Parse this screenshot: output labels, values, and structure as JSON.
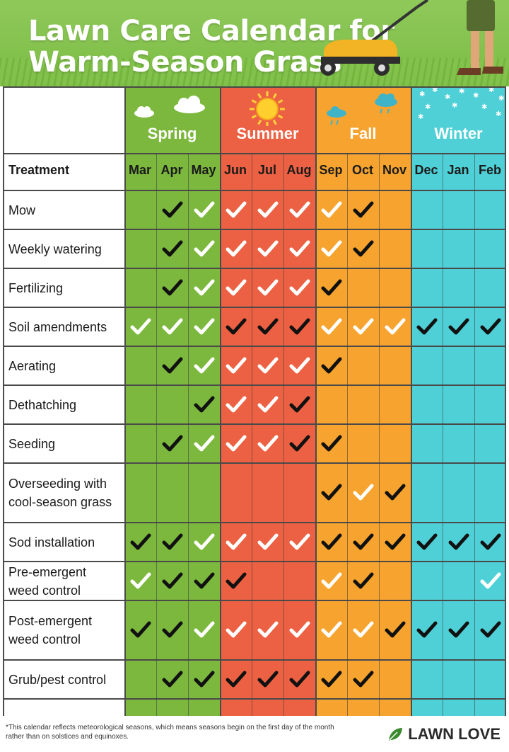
{
  "title": {
    "line1": "Lawn Care Calendar for",
    "line2": "Warm-Season Grass"
  },
  "seasons": [
    {
      "name": "Spring",
      "color": "#7cb83e",
      "icon": "cloud-icon"
    },
    {
      "name": "Summer",
      "color": "#ec6143",
      "icon": "sun-icon"
    },
    {
      "name": "Fall",
      "color": "#f6a42f",
      "icon": "rain-cloud-icon"
    },
    {
      "name": "Winter",
      "color": "#4fd0d6",
      "icon": "snowflake-icon"
    }
  ],
  "table": {
    "header_label": "Treatment",
    "months": [
      "Mar",
      "Apr",
      "May",
      "Jun",
      "Jul",
      "Aug",
      "Sep",
      "Oct",
      "Nov",
      "Dec",
      "Jan",
      "Feb"
    ],
    "legend_note": "Check marks: k = black check, w = white check, . = none",
    "rows": [
      {
        "label": [
          "Mow"
        ],
        "marks": ". k w w w w w k . . . ."
      },
      {
        "label": [
          "Weekly watering"
        ],
        "marks": ". k w w w w w k . . . ."
      },
      {
        "label": [
          "Fertilizing"
        ],
        "marks": ". k w w w w k . . . . ."
      },
      {
        "label": [
          "Soil amendments"
        ],
        "marks": "w w w k k k w w w k k k"
      },
      {
        "label": [
          "Aerating"
        ],
        "marks": ". k w w w w k . . . . ."
      },
      {
        "label": [
          "Dethatching"
        ],
        "marks": ". . k w w k . . . . . ."
      },
      {
        "label": [
          "Seeding"
        ],
        "marks": ". k w w w k k . . . . ."
      },
      {
        "label": [
          "Overseeding with",
          "cool-season grass"
        ],
        "marks": ". . . . . . k w k . . ."
      },
      {
        "label": [
          "Sod installation"
        ],
        "marks": "k k w w w w k k k k k k"
      },
      {
        "label": [
          "Pre-emergent",
          "weed control"
        ],
        "marks": "w k k k . . w k . . . w"
      },
      {
        "label": [
          "Post-emergent",
          "weed control"
        ],
        "marks": "k k w w w w w w k k k k"
      },
      {
        "label": [
          "Grub/pest control"
        ],
        "marks": ". k k k k k k k . . . ."
      }
    ]
  },
  "footer": {
    "note": "*This calendar reflects meteorological seasons, which means seasons begin on the first day of the month rather than on solstices and equinoxes.",
    "brand": "LAWN LOVE"
  }
}
